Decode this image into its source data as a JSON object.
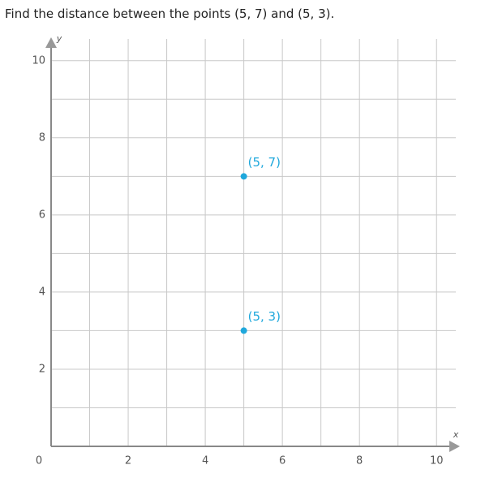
{
  "chart_data": {
    "type": "scatter",
    "title": "Find the distance between the points (5, 7) and (5, 3).",
    "x_label": "x",
    "y_label": "y",
    "series": [
      {
        "color": "#1fa8dc",
        "x": [
          5,
          5
        ],
        "values": [
          7,
          3
        ],
        "value_labels": [
          "(5, 7)",
          "(5, 3)"
        ]
      }
    ],
    "xlim": [
      0,
      10.5
    ],
    "ylim": [
      0,
      10.5
    ],
    "xticks": [
      0,
      2,
      4,
      6,
      8,
      10
    ],
    "yticks": [
      2,
      4,
      6,
      8,
      10
    ],
    "xgrid": [
      1,
      2,
      3,
      4,
      5,
      6,
      7,
      8,
      9,
      10
    ],
    "ygrid": [
      1,
      2,
      3,
      4,
      5,
      6,
      7,
      8,
      9,
      10
    ],
    "grid": true
  }
}
